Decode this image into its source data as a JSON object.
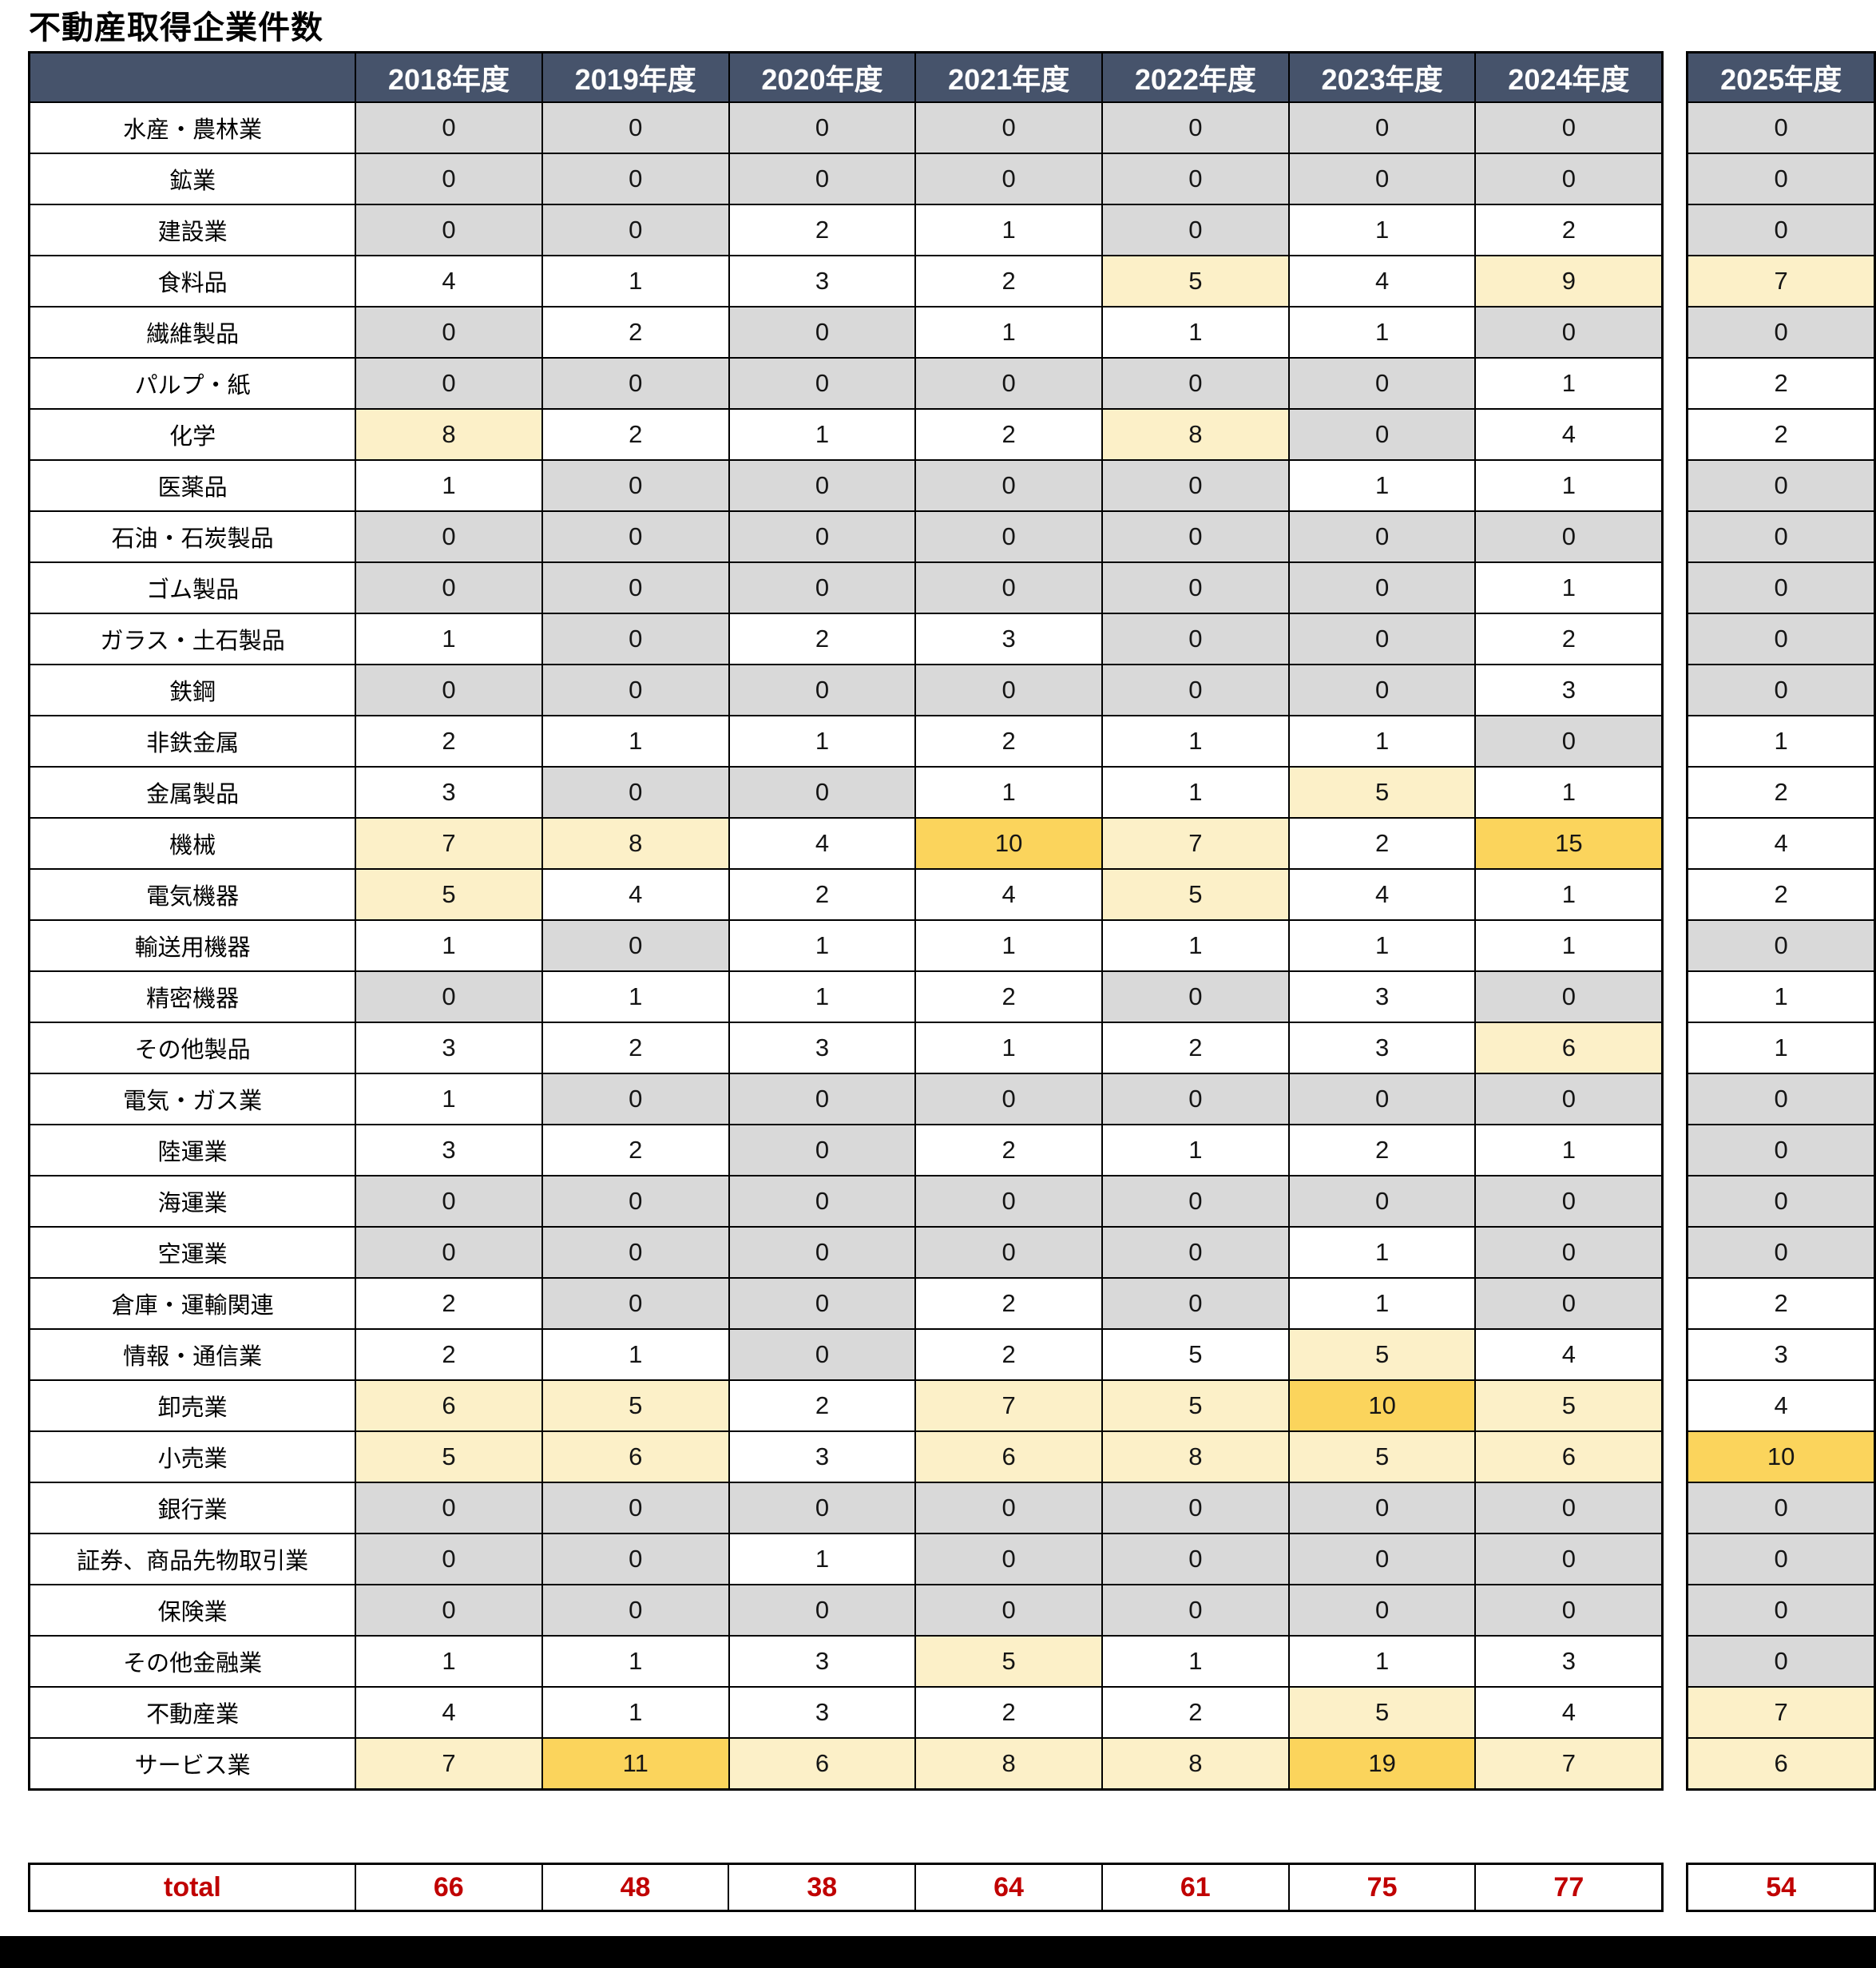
{
  "title": "不動産取得企業件数",
  "colors": {
    "header_bg": "#46536B",
    "header_text": "#FFFFFF",
    "zero_cell_bg": "#D9D9D9",
    "plain_cell_bg": "#FFFFFF",
    "mid_cell_bg": "#FCF0C8",
    "high_cell_bg": "#FBD45C",
    "grid_line": "#000000",
    "total_text": "#C00000"
  },
  "table": {
    "year_columns": [
      "2018年度",
      "2019年度",
      "2020年度",
      "2021年度",
      "2022年度",
      "2023年度",
      "2024年度"
    ],
    "extra_year_column": "2025年度",
    "rows": [
      {
        "label": "水産・農林業",
        "values": [
          0,
          0,
          0,
          0,
          0,
          0,
          0
        ],
        "extra": 0
      },
      {
        "label": "鉱業",
        "values": [
          0,
          0,
          0,
          0,
          0,
          0,
          0
        ],
        "extra": 0
      },
      {
        "label": "建設業",
        "values": [
          0,
          0,
          2,
          1,
          0,
          1,
          2
        ],
        "extra": 0
      },
      {
        "label": "食料品",
        "values": [
          4,
          1,
          3,
          2,
          5,
          4,
          9
        ],
        "extra": 7
      },
      {
        "label": "繊維製品",
        "values": [
          0,
          2,
          0,
          1,
          1,
          1,
          0
        ],
        "extra": 0
      },
      {
        "label": "パルプ・紙",
        "values": [
          0,
          0,
          0,
          0,
          0,
          0,
          1
        ],
        "extra": 2
      },
      {
        "label": "化学",
        "values": [
          8,
          2,
          1,
          2,
          8,
          0,
          4
        ],
        "extra": 2
      },
      {
        "label": "医薬品",
        "values": [
          1,
          0,
          0,
          0,
          0,
          1,
          1
        ],
        "extra": 0
      },
      {
        "label": "石油・石炭製品",
        "values": [
          0,
          0,
          0,
          0,
          0,
          0,
          0
        ],
        "extra": 0
      },
      {
        "label": "ゴム製品",
        "values": [
          0,
          0,
          0,
          0,
          0,
          0,
          1
        ],
        "extra": 0
      },
      {
        "label": "ガラス・土石製品",
        "values": [
          1,
          0,
          2,
          3,
          0,
          0,
          2
        ],
        "extra": 0
      },
      {
        "label": "鉄鋼",
        "values": [
          0,
          0,
          0,
          0,
          0,
          0,
          3
        ],
        "extra": 0
      },
      {
        "label": "非鉄金属",
        "values": [
          2,
          1,
          1,
          2,
          1,
          1,
          0
        ],
        "extra": 1
      },
      {
        "label": "金属製品",
        "values": [
          3,
          0,
          0,
          1,
          1,
          5,
          1
        ],
        "extra": 2
      },
      {
        "label": "機械",
        "values": [
          7,
          8,
          4,
          10,
          7,
          2,
          15
        ],
        "extra": 4
      },
      {
        "label": "電気機器",
        "values": [
          5,
          4,
          2,
          4,
          5,
          4,
          1
        ],
        "extra": 2
      },
      {
        "label": "輸送用機器",
        "values": [
          1,
          0,
          1,
          1,
          1,
          1,
          1
        ],
        "extra": 0
      },
      {
        "label": "精密機器",
        "values": [
          0,
          1,
          1,
          2,
          0,
          3,
          0
        ],
        "extra": 1
      },
      {
        "label": "その他製品",
        "values": [
          3,
          2,
          3,
          1,
          2,
          3,
          6
        ],
        "extra": 1
      },
      {
        "label": "電気・ガス業",
        "values": [
          1,
          0,
          0,
          0,
          0,
          0,
          0
        ],
        "extra": 0
      },
      {
        "label": "陸運業",
        "values": [
          3,
          2,
          0,
          2,
          1,
          2,
          1
        ],
        "extra": 0
      },
      {
        "label": "海運業",
        "values": [
          0,
          0,
          0,
          0,
          0,
          0,
          0
        ],
        "extra": 0
      },
      {
        "label": "空運業",
        "values": [
          0,
          0,
          0,
          0,
          0,
          1,
          0
        ],
        "extra": 0
      },
      {
        "label": "倉庫・運輸関連",
        "values": [
          2,
          0,
          0,
          2,
          0,
          1,
          0
        ],
        "extra": 2
      },
      {
        "label": "情報・通信業",
        "values": [
          2,
          1,
          0,
          2,
          5,
          5,
          4
        ],
        "extra": 3
      },
      {
        "label": "卸売業",
        "values": [
          6,
          5,
          2,
          7,
          5,
          10,
          5
        ],
        "extra": 4
      },
      {
        "label": "小売業",
        "values": [
          5,
          6,
          3,
          6,
          8,
          5,
          6
        ],
        "extra": 10
      },
      {
        "label": "銀行業",
        "values": [
          0,
          0,
          0,
          0,
          0,
          0,
          0
        ],
        "extra": 0
      },
      {
        "label": "証券、商品先物取引業",
        "values": [
          0,
          0,
          1,
          0,
          0,
          0,
          0
        ],
        "extra": 0
      },
      {
        "label": "保険業",
        "values": [
          0,
          0,
          0,
          0,
          0,
          0,
          0
        ],
        "extra": 0
      },
      {
        "label": "その他金融業",
        "values": [
          1,
          1,
          3,
          5,
          1,
          1,
          3
        ],
        "extra": 0
      },
      {
        "label": "不動産業",
        "values": [
          4,
          1,
          3,
          2,
          2,
          5,
          4
        ],
        "extra": 7
      },
      {
        "label": "サービス業",
        "values": [
          7,
          11,
          6,
          8,
          8,
          19,
          7
        ],
        "extra": 6
      }
    ],
    "override_white_cells": [
      [
        24,
        4
      ]
    ],
    "total": {
      "label": "total",
      "values": [
        66,
        48,
        38,
        64,
        61,
        75,
        77
      ],
      "extra": 54
    }
  }
}
